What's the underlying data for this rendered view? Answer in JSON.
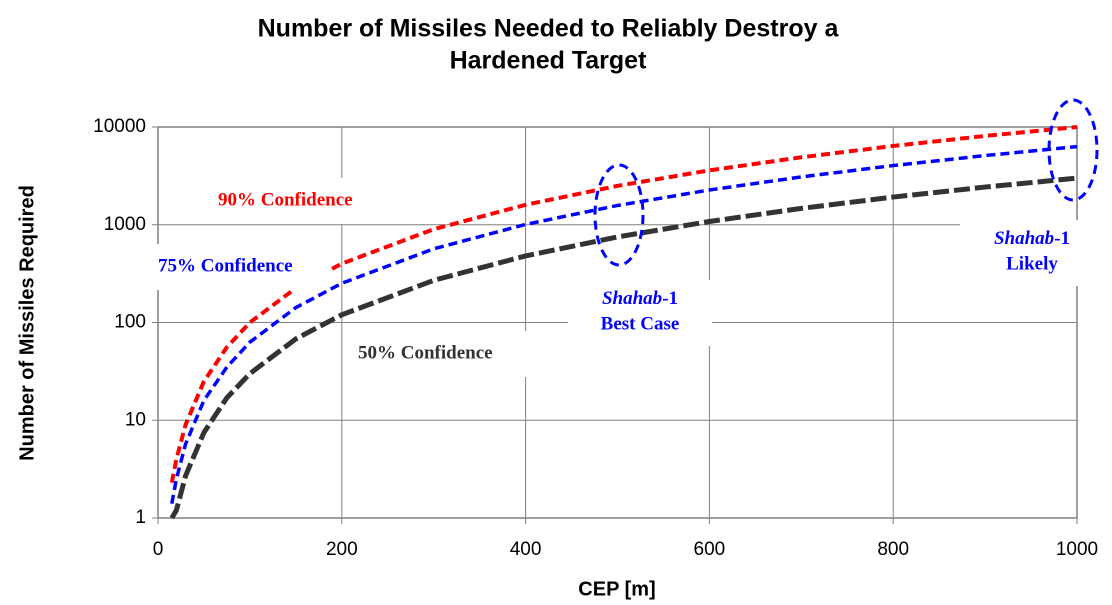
{
  "chart_data": {
    "type": "line",
    "title": [
      "Number of Missiles Needed to Reliably Destroy a",
      "Hardened Target"
    ],
    "x_label": "CEP [m]",
    "y_label": "Number of Missiles Required",
    "x": [
      15,
      20,
      30,
      50,
      75,
      100,
      150,
      200,
      300,
      400,
      500,
      600,
      700,
      800,
      900,
      1000
    ],
    "series": [
      {
        "name": "90% Confidence",
        "color": "#ff0000",
        "values": [
          2.3,
          4,
          9,
          25,
          56,
          100,
          225,
          400,
          900,
          1600,
          2500,
          3600,
          4900,
          6400,
          8100,
          10000
        ]
      },
      {
        "name": "75% Confidence",
        "color": "#0000ff",
        "values": [
          1.4,
          2.5,
          5.7,
          16,
          35,
          63,
          142,
          252,
          567,
          1008,
          1575,
          2268,
          3087,
          4032,
          5103,
          6300
        ]
      },
      {
        "name": "50% Confidence",
        "color": "#333333",
        "values": [
          1,
          1.2,
          2.7,
          7.5,
          17,
          30,
          68,
          120,
          270,
          480,
          750,
          1080,
          1470,
          1920,
          2430,
          3000
        ]
      }
    ],
    "annotations": [
      {
        "name": "Shahab",
        "suffix": "-1",
        "label": "Best Case"
      },
      {
        "name": "Shahab",
        "suffix": "-1",
        "label": "Likely"
      }
    ],
    "xlim": [
      0,
      1000
    ],
    "xticks": [
      0,
      200,
      400,
      600,
      800,
      1000
    ],
    "ylim": [
      1,
      10000
    ],
    "yticks": [
      1,
      10,
      100,
      1000,
      10000
    ],
    "log_y": true,
    "grid": true
  }
}
